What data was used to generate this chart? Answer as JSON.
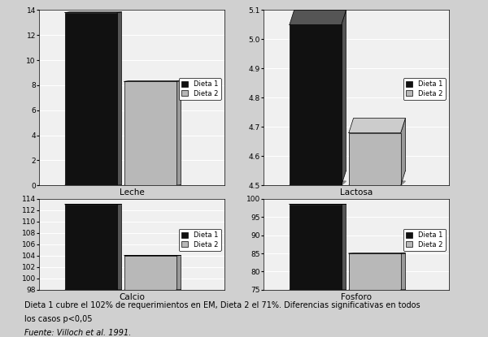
{
  "charts": [
    {
      "title": "Leche",
      "dieta1": 13.8,
      "dieta2": 8.3,
      "ylim": [
        0,
        14
      ],
      "yticks": [
        0,
        2,
        4,
        6,
        8,
        10,
        12,
        14
      ]
    },
    {
      "title": "Lactosa",
      "dieta1": 5.05,
      "dieta2": 4.68,
      "ylim": [
        4.5,
        5.1
      ],
      "yticks": [
        4.5,
        4.6,
        4.7,
        4.8,
        4.9,
        5.0,
        5.1
      ]
    },
    {
      "title": "Calcio",
      "dieta1": 113.0,
      "dieta2": 104.0,
      "ylim": [
        98,
        114
      ],
      "yticks": [
        98,
        100,
        102,
        104,
        106,
        108,
        110,
        112,
        114
      ]
    },
    {
      "title": "Fosforo",
      "dieta1": 98.5,
      "dieta2": 85.0,
      "ylim": [
        75,
        100
      ],
      "yticks": [
        75,
        80,
        85,
        90,
        95,
        100
      ]
    }
  ],
  "color_dieta1": "#111111",
  "color_dieta2": "#b8b8b8",
  "color_shadow1": "#444444",
  "color_shadow2": "#888888",
  "color_floor": "#888888",
  "legend_labels": [
    "Dieta 1",
    "Dieta 2"
  ],
  "footnote1": "Dieta 1 cubre el 102% de requerimientos en EM, Dieta 2 el 71%. Diferencias significativas en todos",
  "footnote2": "los casos p<0,05",
  "footnote3": "Fuente: Villoch et al. 1991.",
  "bg_color": "#d0d0d0",
  "plot_bg": "#f0f0f0"
}
